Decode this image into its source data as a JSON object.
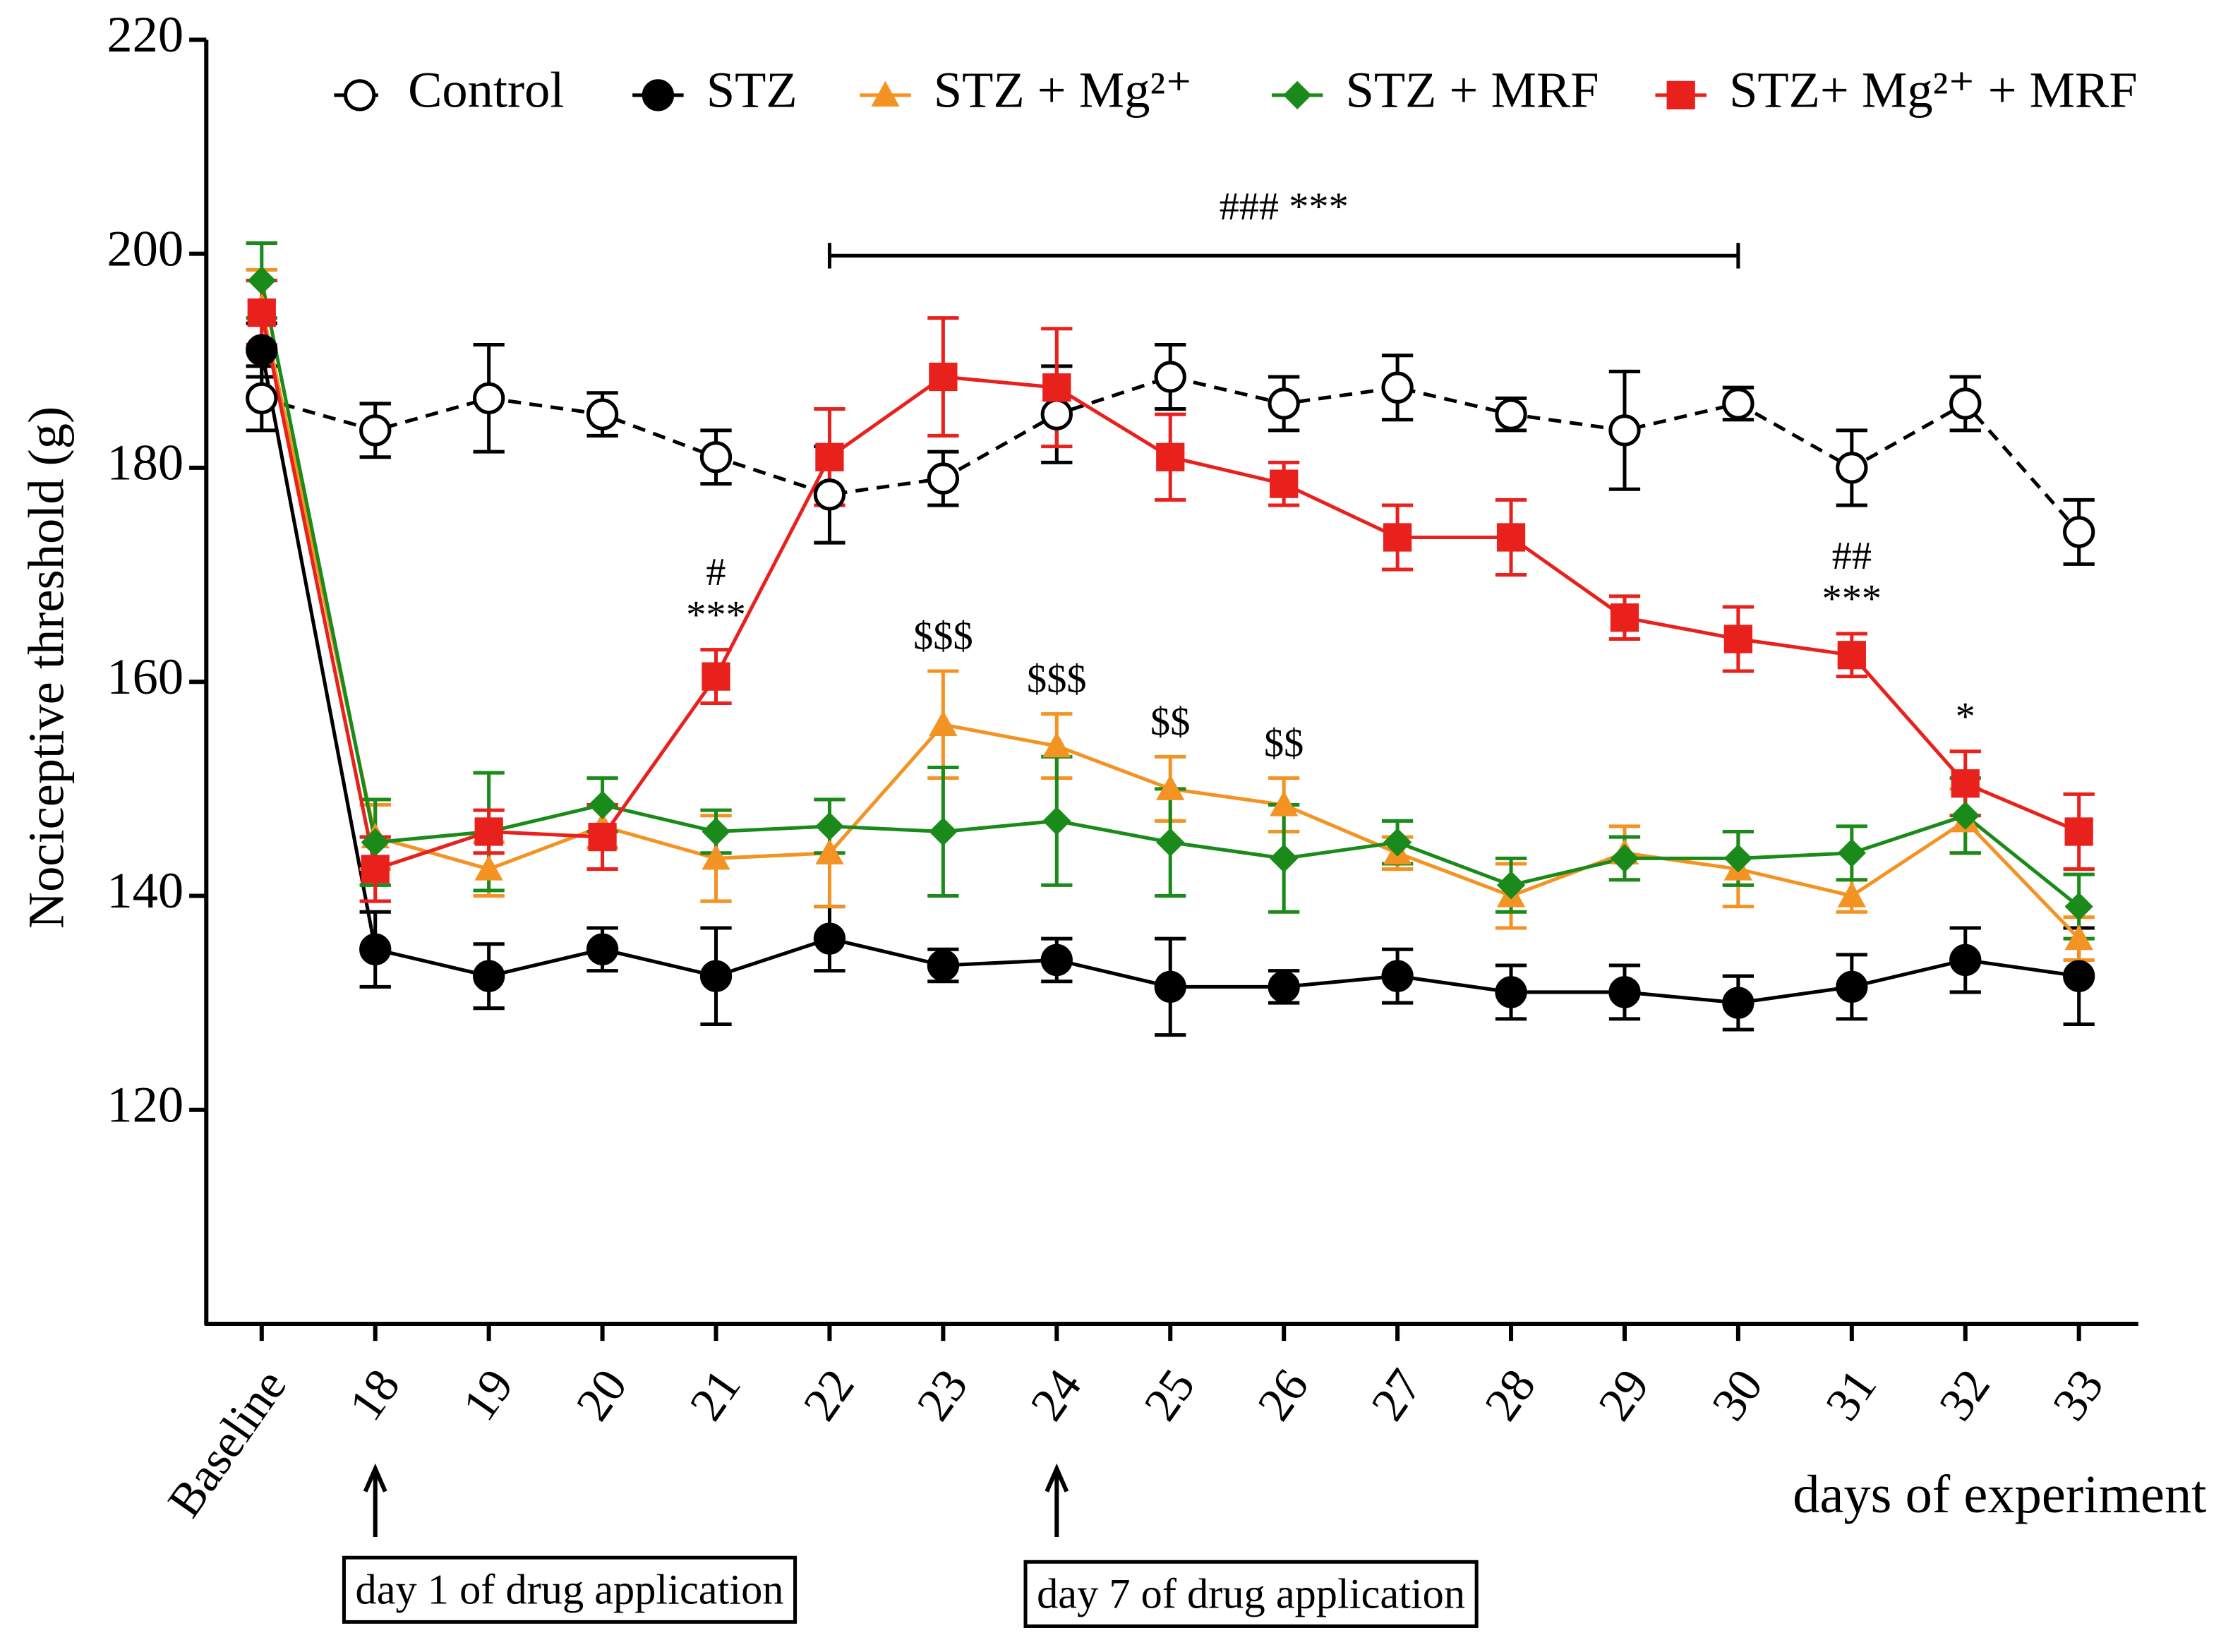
{
  "chart_data": {
    "type": "line",
    "y_label": "Nociceptive threshold (g)",
    "x_label": "days of experiment",
    "categories": [
      "Baseline",
      "18",
      "19",
      "20",
      "21",
      "22",
      "23",
      "24",
      "25",
      "26",
      "27",
      "28",
      "29",
      "30",
      "31",
      "32",
      "33"
    ],
    "ylim": [
      100,
      220
    ],
    "yticks": [
      120,
      140,
      160,
      180,
      200,
      220
    ],
    "legend": "top",
    "series": [
      {
        "name": "Control",
        "color": "#000000",
        "marker": "open-circle",
        "dashed": true,
        "values": [
          186.5,
          183.5,
          186.5,
          185,
          181,
          177.5,
          179,
          185,
          188.5,
          186,
          187.5,
          185,
          183.5,
          186,
          180,
          186,
          174
        ],
        "errors": [
          3,
          2.5,
          5,
          2,
          2.5,
          4.5,
          2.5,
          4.5,
          3,
          2.5,
          3,
          1.5,
          5.5,
          1.5,
          3.5,
          2.5,
          3
        ]
      },
      {
        "name": "STZ",
        "color": "#000000",
        "marker": "circle",
        "values": [
          191,
          135,
          132.5,
          135,
          132.5,
          136,
          133.5,
          134,
          131.5,
          131.5,
          132.5,
          131,
          131,
          130,
          131.5,
          134,
          132.5
        ],
        "errors": [
          2.5,
          3.5,
          3,
          2,
          4.5,
          3,
          1.5,
          2,
          4.5,
          1.5,
          2.5,
          2.5,
          2.5,
          2.5,
          3,
          3,
          4.5
        ]
      },
      {
        "name": "STZ + Mg²⁺",
        "color": "#f39323",
        "marker": "triangle",
        "values": [
          195,
          145.5,
          142.5,
          146.5,
          143.5,
          144,
          156,
          154,
          150,
          148.5,
          144,
          140,
          144,
          142.5,
          140,
          147,
          136
        ],
        "errors": [
          3.5,
          3,
          2.5,
          2,
          4,
          5,
          5,
          3,
          3,
          2.5,
          1.5,
          3,
          2.5,
          3.5,
          1.5,
          3,
          2
        ]
      },
      {
        "name": "STZ + MRF",
        "color": "#1a8a1a",
        "marker": "diamond",
        "values": [
          197.5,
          145,
          146,
          148.5,
          146,
          146.5,
          146,
          147,
          145,
          143.5,
          145,
          141,
          143.5,
          143.5,
          144,
          147.5,
          139
        ],
        "errors": [
          3.5,
          4,
          5.5,
          2.5,
          2,
          2.5,
          6,
          6,
          5,
          5,
          2,
          2.5,
          2,
          2.5,
          2.5,
          3.5,
          3
        ]
      },
      {
        "name": "STZ+ Mg²⁺ + MRF",
        "color": "#e8211d",
        "marker": "square",
        "values": [
          194.5,
          142.5,
          146,
          145.5,
          160.5,
          181,
          188.5,
          187.5,
          181,
          178.5,
          173.5,
          173.5,
          166,
          164,
          162.5,
          150.5,
          146
        ],
        "errors": [
          3,
          3,
          2,
          3,
          2.5,
          4.5,
          5.5,
          5.5,
          4,
          2,
          3,
          3.5,
          2,
          3,
          2,
          3,
          3.5
        ]
      }
    ],
    "bracket": {
      "from": "22",
      "to": "30",
      "text": "### ***"
    },
    "annotations": [
      {
        "series": "STZ+ Mg²⁺ + MRF",
        "category": "21",
        "lines": [
          "#",
          "***"
        ]
      },
      {
        "series": "STZ + Mg²⁺",
        "category": "23",
        "lines": [
          "$$$"
        ]
      },
      {
        "series": "STZ + Mg²⁺",
        "category": "24",
        "lines": [
          "$$$"
        ]
      },
      {
        "series": "STZ + Mg²⁺",
        "category": "25",
        "lines": [
          "$$"
        ]
      },
      {
        "series": "STZ + Mg²⁺",
        "category": "26",
        "lines": [
          "$$"
        ]
      },
      {
        "series": "STZ+ Mg²⁺ + MRF",
        "category": "31",
        "lines": [
          "##",
          "***"
        ]
      },
      {
        "series": "STZ+ Mg²⁺ + MRF",
        "category": "32",
        "lines": [
          "*"
        ]
      }
    ],
    "drug_marks": [
      {
        "category": "18",
        "text": "day 1 of drug application"
      },
      {
        "category": "24",
        "text": "day 7 of drug application"
      }
    ]
  }
}
